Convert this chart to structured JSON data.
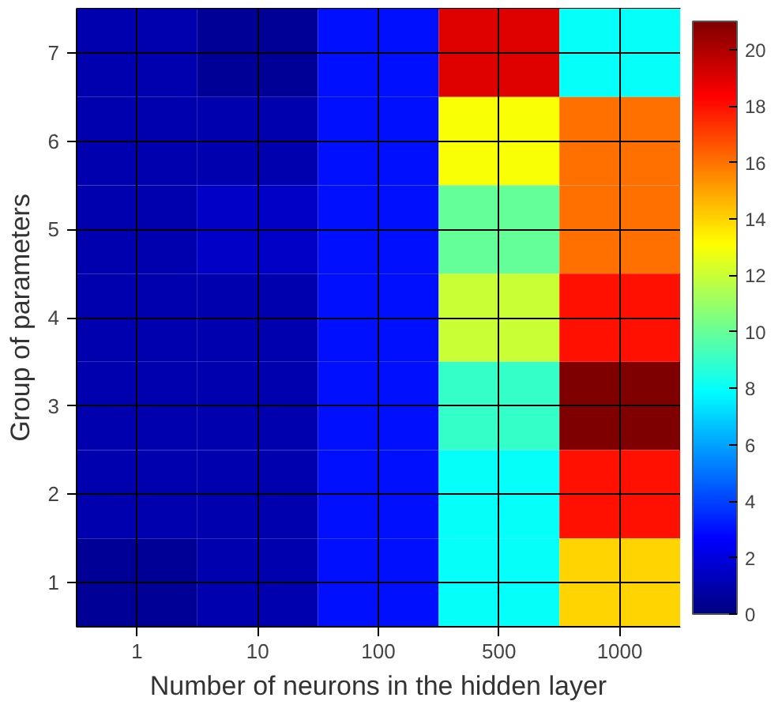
{
  "chart_data": {
    "type": "heatmap",
    "xlabel": "Number of neurons in the hidden layer",
    "ylabel": "Group of parameters",
    "categories": [
      "1",
      "10",
      "100",
      "500",
      "1000"
    ],
    "y_categories": [
      "7",
      "6",
      "5",
      "4",
      "3",
      "2",
      "1"
    ],
    "cells": [
      [
        1,
        0.5,
        3,
        19,
        8
      ],
      [
        1,
        1,
        3,
        13,
        16
      ],
      [
        1,
        1.5,
        3,
        10,
        16
      ],
      [
        1,
        1,
        3,
        12,
        18
      ],
      [
        1,
        1,
        3,
        9,
        21
      ],
      [
        1,
        1,
        3,
        8,
        18
      ],
      [
        0.5,
        1,
        3,
        8,
        14
      ]
    ],
    "clim": [
      0,
      21
    ],
    "cticks": [
      0,
      2,
      4,
      6,
      8,
      10,
      12,
      14,
      16,
      18,
      20
    ],
    "grid": true
  }
}
